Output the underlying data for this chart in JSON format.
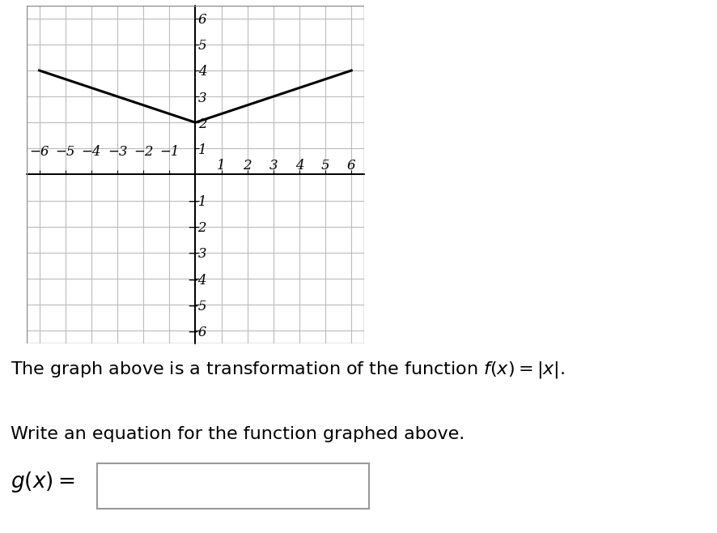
{
  "xlim": [
    -6.5,
    6.5
  ],
  "ylim": [
    -6.5,
    6.5
  ],
  "xticks": [
    -6,
    -5,
    -4,
    -3,
    -2,
    -1,
    1,
    2,
    3,
    4,
    5,
    6
  ],
  "yticks": [
    -6,
    -5,
    -4,
    -3,
    -2,
    -1,
    1,
    2,
    3,
    4,
    5,
    6
  ],
  "grid_color": "#bbbbbb",
  "axis_color": "#000000",
  "border_color": "#888888",
  "curve_color": "#000000",
  "curve_linewidth": 2.2,
  "vertex_x": 0,
  "vertex_y": 2,
  "slope": 0.333,
  "x_range": [
    -6,
    6
  ],
  "text1": "The graph above is a transformation of the function $f(x) = |x|$.",
  "text2": "Write an equation for the function graphed above.",
  "text3": "$g(x) =$",
  "tick_font_size": 12,
  "text_font_size": 16,
  "gx_font_size": 19
}
